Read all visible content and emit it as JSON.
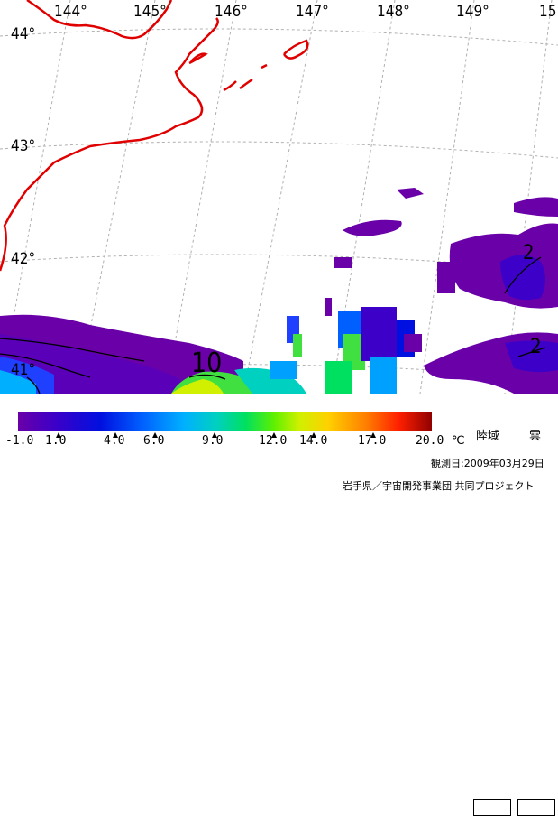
{
  "map": {
    "lon_labels": [
      "144°",
      "145°",
      "146°",
      "147°",
      "148°",
      "149°",
      "15"
    ],
    "lat_labels": [
      "44°",
      "43°",
      "42°",
      "41°"
    ],
    "contour_labels": [
      "10",
      "2",
      "2"
    ]
  },
  "legend": {
    "ticks": [
      "-1.0",
      "1.0",
      "4.0",
      "6.0",
      "9.0",
      "12.0",
      "14.0",
      "17.0",
      "20.0"
    ],
    "unit": "℃",
    "land_label": "陸域",
    "cloud_label": "雲",
    "colors": [
      "#6a00a8",
      "#3c00c8",
      "#0010e0",
      "#0060ff",
      "#00a0ff",
      "#00d0c0",
      "#00e060",
      "#60f000",
      "#d0f000",
      "#ffd000",
      "#ff8000",
      "#ff2000",
      "#c00000",
      "#900000"
    ]
  },
  "footer": {
    "obs_date": "観測日:2009年03月29日",
    "credit": "岩手県／宇宙開発事業団 共同プロジェクト"
  }
}
